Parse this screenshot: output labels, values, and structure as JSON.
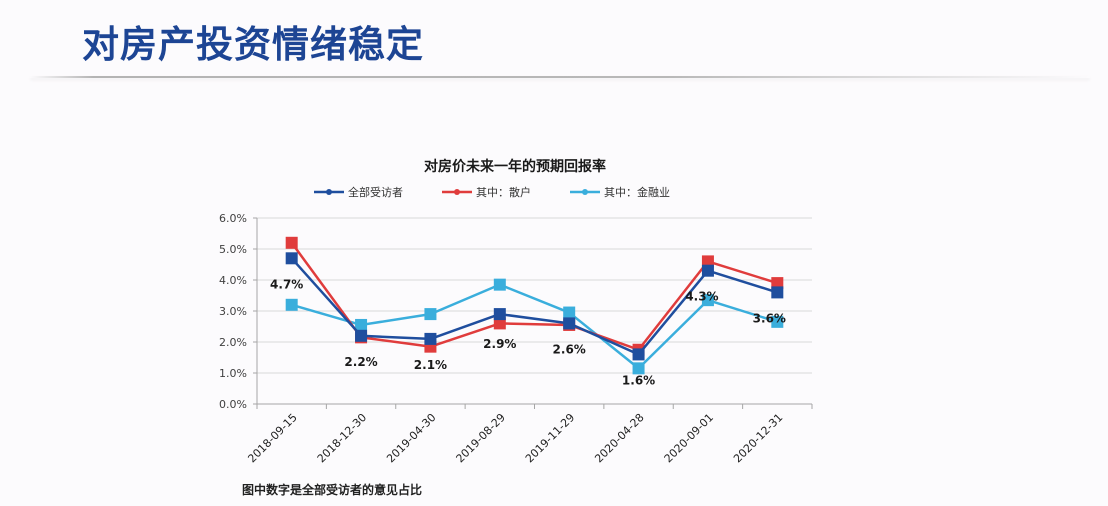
{
  "page": {
    "title": "对房产投资情绪稳定",
    "footnote": "图中数字是全部受访者的意见占比"
  },
  "colors": {
    "title": "#1d4594",
    "series_all": "#1f4e9e",
    "series_retail": "#e03c3c",
    "series_finance": "#3aaedc",
    "grid": "#d9d9d9",
    "axis": "#a6a6a6"
  },
  "chart_data": {
    "type": "line",
    "title": "对房价未来一年的预期回报率",
    "xlabel": "",
    "ylabel": "",
    "ylim": [
      0,
      6
    ],
    "yticks": [
      "0.0%",
      "1.0%",
      "2.0%",
      "3.0%",
      "4.0%",
      "5.0%",
      "6.0%"
    ],
    "grid": true,
    "legend_position": "top",
    "categories": [
      "2018-09-15",
      "2018-12-30",
      "2019-04-30",
      "2019-08-29",
      "2019-11-29",
      "2020-04-28",
      "2020-09-01",
      "2020-12-31"
    ],
    "series": [
      {
        "name": "全部受访者",
        "color": "#1f4e9e",
        "values": [
          4.7,
          2.2,
          2.1,
          2.9,
          2.6,
          1.6,
          4.3,
          3.6
        ]
      },
      {
        "name": "其中：散户",
        "color": "#e03c3c",
        "values": [
          5.2,
          2.15,
          1.85,
          2.6,
          2.55,
          1.75,
          4.6,
          3.9
        ]
      },
      {
        "name": "其中：金融业",
        "color": "#3aaedc",
        "values": [
          3.2,
          2.55,
          2.9,
          3.85,
          2.95,
          1.15,
          3.35,
          2.65
        ]
      }
    ],
    "data_labels": [
      "4.7%",
      "2.2%",
      "2.1%",
      "2.9%",
      "2.6%",
      "1.6%",
      "4.3%",
      "3.6%"
    ]
  }
}
